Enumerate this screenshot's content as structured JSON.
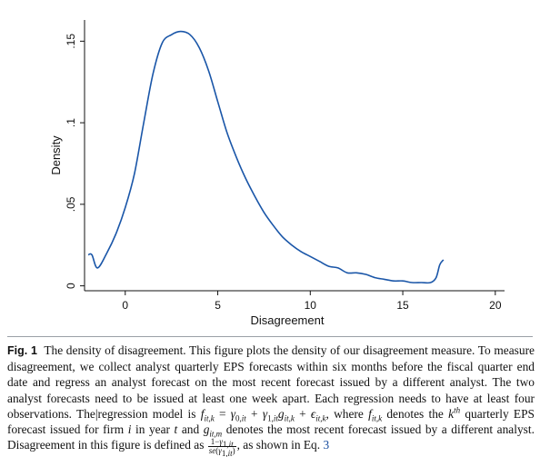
{
  "chart_data": {
    "type": "line",
    "xlabel": "Disagreement",
    "ylabel": "Density",
    "xlim": [
      -2.2,
      20.5
    ],
    "ylim": [
      -0.003,
      0.163
    ],
    "xticks": [
      0,
      5,
      10,
      15,
      20
    ],
    "xtick_labels": [
      "0",
      "5",
      "10",
      "15",
      "20"
    ],
    "yticks": [
      0,
      0.05,
      0.1,
      0.15
    ],
    "ytick_labels": [
      "0",
      ".05",
      ".1",
      ".15"
    ],
    "grid": false,
    "line_color": "#1a56a8",
    "series": [
      {
        "x": [
          -2.0,
          -1.8,
          -1.5,
          -1.0,
          -0.5,
          0.0,
          0.5,
          1.0,
          1.5,
          2.0,
          2.5,
          3.0,
          3.5,
          4.0,
          4.5,
          5.0,
          5.5,
          6.0,
          6.5,
          7.0,
          7.5,
          8.0,
          8.5,
          9.0,
          9.5,
          10.0,
          10.5,
          11.0,
          11.5,
          12.0,
          12.5,
          13.0,
          13.5,
          14.0,
          14.5,
          15.0,
          15.5,
          16.0,
          16.5,
          16.8,
          17.0,
          17.2
        ],
        "y": [
          0.019,
          0.019,
          0.011,
          0.02,
          0.032,
          0.048,
          0.069,
          0.1,
          0.13,
          0.149,
          0.154,
          0.156,
          0.154,
          0.146,
          0.132,
          0.113,
          0.094,
          0.079,
          0.066,
          0.055,
          0.045,
          0.037,
          0.03,
          0.025,
          0.021,
          0.018,
          0.015,
          0.012,
          0.011,
          0.008,
          0.008,
          0.007,
          0.005,
          0.004,
          0.003,
          0.003,
          0.002,
          0.002,
          0.002,
          0.005,
          0.013,
          0.016
        ]
      }
    ]
  },
  "caption": {
    "fig_label": "Fig. 1",
    "p1": "The density of disagreement. This figure plots the density of our disagreement measure. To measure disagreement, we collect analyst quarterly EPS forecasts within six months before the fiscal quarter end date and regress an analyst forecast on the most recent forecast issued by a different analyst. The two analyst forecasts need to be issued at least one week apart. Each regression needs to have at least four observations. The|regression model is",
    "p2": ", where",
    "p3": "denotes the",
    "p4": "quarterly EPS forecast issued for firm",
    "p5": "in year",
    "p6": "and",
    "p7": "denotes the most recent forecast issued by a different analyst. Disagreement in this figure is defined as",
    "p8": ", as shown in Eq.",
    "eq_ref": "3"
  }
}
